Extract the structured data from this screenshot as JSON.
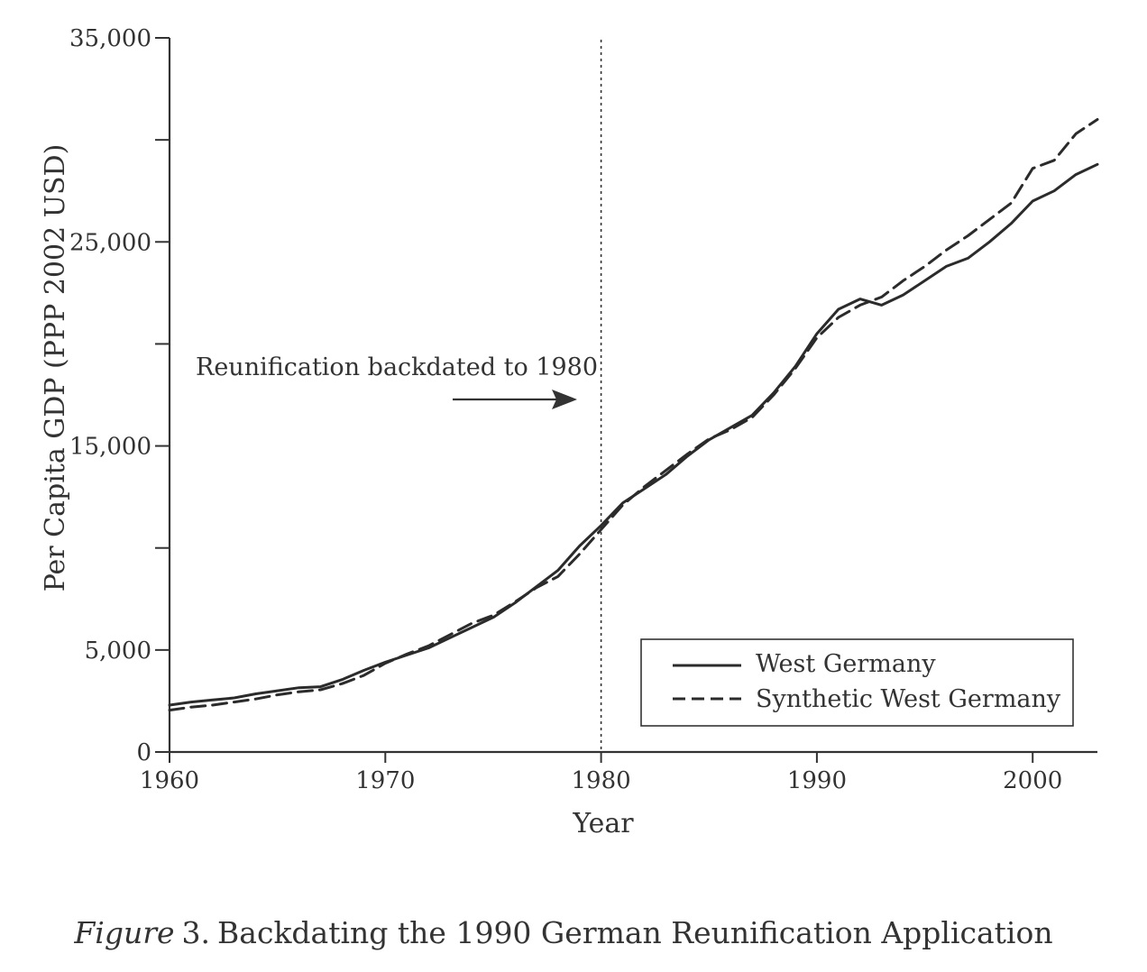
{
  "chart_data": {
    "type": "line",
    "xlabel": "Year",
    "ylabel": "Per Capita GDP (PPP 2002 USD)",
    "xlim": [
      1960,
      2003
    ],
    "ylim": [
      0,
      35000
    ],
    "x_ticks": [
      1960,
      1970,
      1980,
      1990,
      2000
    ],
    "x_tick_labels": [
      "1960",
      "1970",
      "1980",
      "1990",
      "2000"
    ],
    "y_ticks": [
      0,
      5000,
      10000,
      15000,
      20000,
      25000,
      30000,
      35000
    ],
    "y_tick_labels": [
      "0",
      "5,000",
      "",
      "15,000",
      "",
      "25,000",
      "",
      "35,000"
    ],
    "annotation": {
      "text": "Reunification backdated to 1980",
      "vline_x": 1980,
      "vline_style": "dotted",
      "arrow": "points-right-to-vline"
    },
    "legend": {
      "placement": "bottom-right",
      "boxed": true
    },
    "grid": false,
    "x": [
      1960,
      1961,
      1962,
      1963,
      1964,
      1965,
      1966,
      1967,
      1968,
      1969,
      1970,
      1971,
      1972,
      1973,
      1974,
      1975,
      1976,
      1977,
      1978,
      1979,
      1980,
      1981,
      1982,
      1983,
      1984,
      1985,
      1986,
      1987,
      1988,
      1989,
      1990,
      1991,
      1992,
      1993,
      1994,
      1995,
      1996,
      1997,
      1998,
      1999,
      2000,
      2001,
      2002,
      2003
    ],
    "series": [
      {
        "name": "West Germany",
        "style": "solid",
        "color": "#2b2b2b",
        "values": [
          2300,
          2450,
          2550,
          2650,
          2850,
          3000,
          3150,
          3200,
          3550,
          4000,
          4400,
          4750,
          5100,
          5600,
          6100,
          6600,
          7300,
          8100,
          8900,
          10100,
          11100,
          12200,
          12900,
          13600,
          14500,
          15300,
          15900,
          16500,
          17600,
          18900,
          20500,
          21700,
          22200,
          21900,
          22400,
          23100,
          23800,
          24200,
          25000,
          25900,
          27000,
          27500,
          28300,
          28800
        ]
      },
      {
        "name": "Synthetic West Germany",
        "style": "dashed",
        "color": "#2b2b2b",
        "values": [
          2050,
          2200,
          2300,
          2450,
          2600,
          2800,
          2950,
          3050,
          3350,
          3750,
          4350,
          4800,
          5200,
          5750,
          6300,
          6700,
          7350,
          8050,
          8600,
          9700,
          10900,
          12100,
          13000,
          13800,
          14600,
          15350,
          15800,
          16400,
          17500,
          18800,
          20300,
          21300,
          21900,
          22300,
          23100,
          23800,
          24600,
          25300,
          26100,
          26900,
          28600,
          29000,
          30300,
          31000
        ]
      }
    ]
  },
  "caption": {
    "label": "Figure",
    "number": "3.",
    "text": "Backdating the 1990 German Reunification Application"
  }
}
